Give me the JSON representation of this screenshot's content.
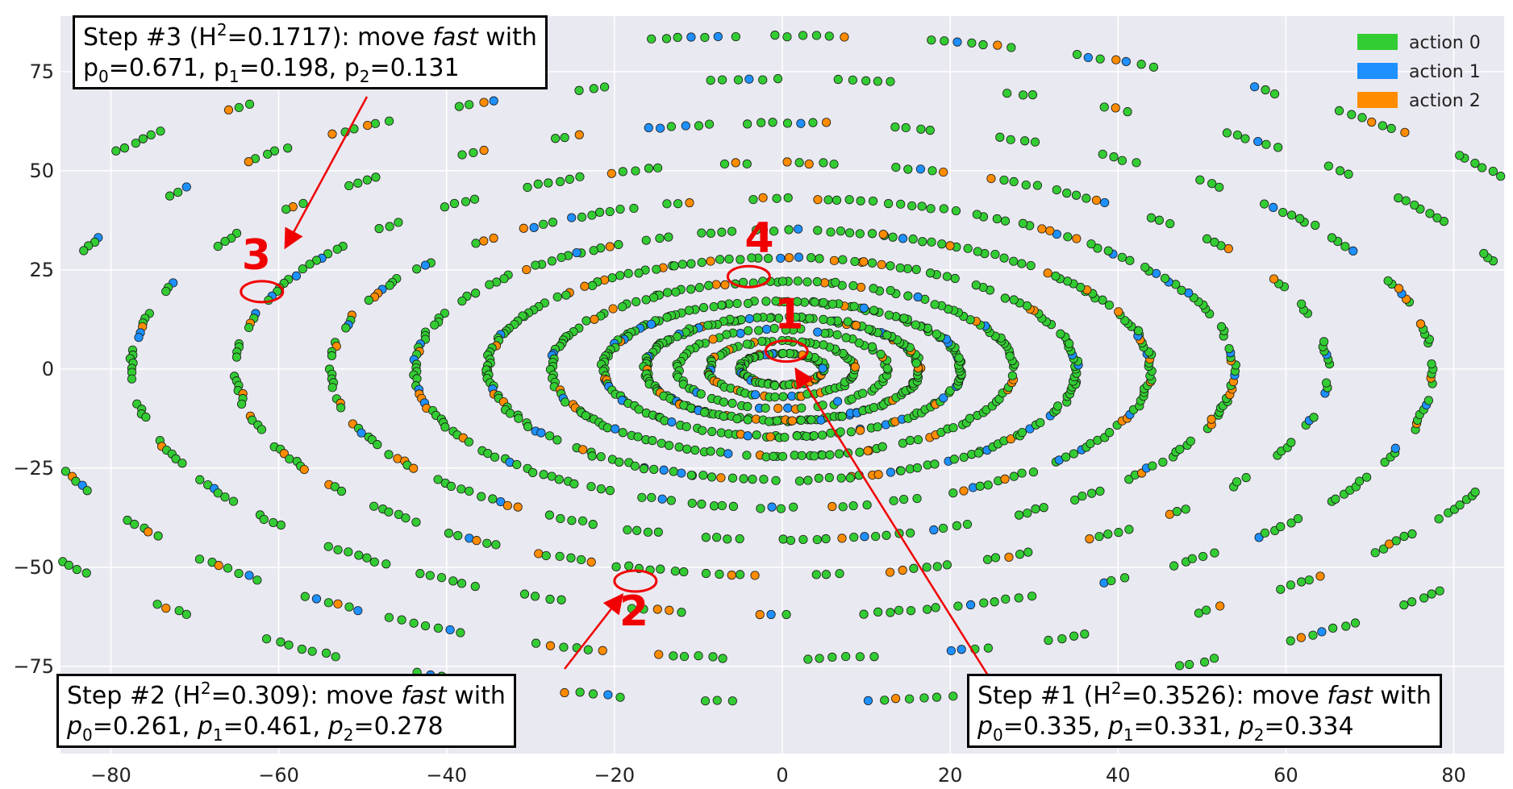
{
  "chart_data": {
    "type": "scatter",
    "xlabel": "",
    "ylabel": "",
    "xlim": [
      -86,
      86
    ],
    "ylim": [
      -97,
      89
    ],
    "xticks": [
      -80,
      -60,
      -40,
      -20,
      0,
      20,
      40,
      60,
      80
    ],
    "yticks": [
      -75,
      -50,
      -25,
      0,
      25,
      50,
      75
    ],
    "xtick_labels": [
      "−80",
      "−60",
      "−40",
      "−20",
      "0",
      "20",
      "40",
      "60",
      "80"
    ],
    "ytick_labels": [
      "−75",
      "−50",
      "−25",
      "0",
      "25",
      "50",
      "75"
    ],
    "grid": true,
    "background": "#e9e9f1",
    "legend_position": "top-right",
    "series": [
      {
        "name": "action 0",
        "color": "#33cc33"
      },
      {
        "name": "action 1",
        "color": "#1e90ff"
      },
      {
        "name": "action 2",
        "color": "#ff8c00"
      }
    ],
    "layout_note_arms": 36,
    "annotations": [
      {
        "label": "1",
        "x": 0.5,
        "y": 4.5
      },
      {
        "label": "2",
        "x": -17.5,
        "y": -53.5
      },
      {
        "label": "3",
        "x": -62,
        "y": 19.5
      },
      {
        "label": "4",
        "x": -4,
        "y": 23.3
      }
    ]
  },
  "callouts": {
    "step3": {
      "line1_pre": "Step #3 (H",
      "line1_sup": "2",
      "line1_mid": "=0.1717): move ",
      "line1_em": "fast",
      "line1_post": " with",
      "p0_label": "p",
      "p0_sub": "0",
      "p0_val": "=0.671, ",
      "p1_label": "p",
      "p1_sub": "1",
      "p1_val": "=0.198, ",
      "p2_label": "p",
      "p2_sub": "2",
      "p2_val": "=0.131"
    },
    "step2": {
      "line1_pre": "Step #2 (H",
      "line1_sup": "2",
      "line1_mid": "=0.309): move ",
      "line1_em": "fast",
      "line1_post": " with",
      "p0_label": "p",
      "p0_sub": "0",
      "p0_val": "=0.261, ",
      "p1_label": "p",
      "p1_sub": "1",
      "p1_val": "=0.461, ",
      "p2_label": "p",
      "p2_sub": "2",
      "p2_val": "=0.278"
    },
    "step1": {
      "line1_pre": "Step #1 (H",
      "line1_sup": "2",
      "line1_mid": "=0.3526): move ",
      "line1_em": "fast",
      "line1_post": " with",
      "p0_label": "p",
      "p0_sub": "0",
      "p0_val": "=0.335, ",
      "p1_label": "p",
      "p1_sub": "1",
      "p1_val": "=0.331, ",
      "p2_label": "p",
      "p2_sub": "2",
      "p2_val": "=0.334"
    }
  }
}
